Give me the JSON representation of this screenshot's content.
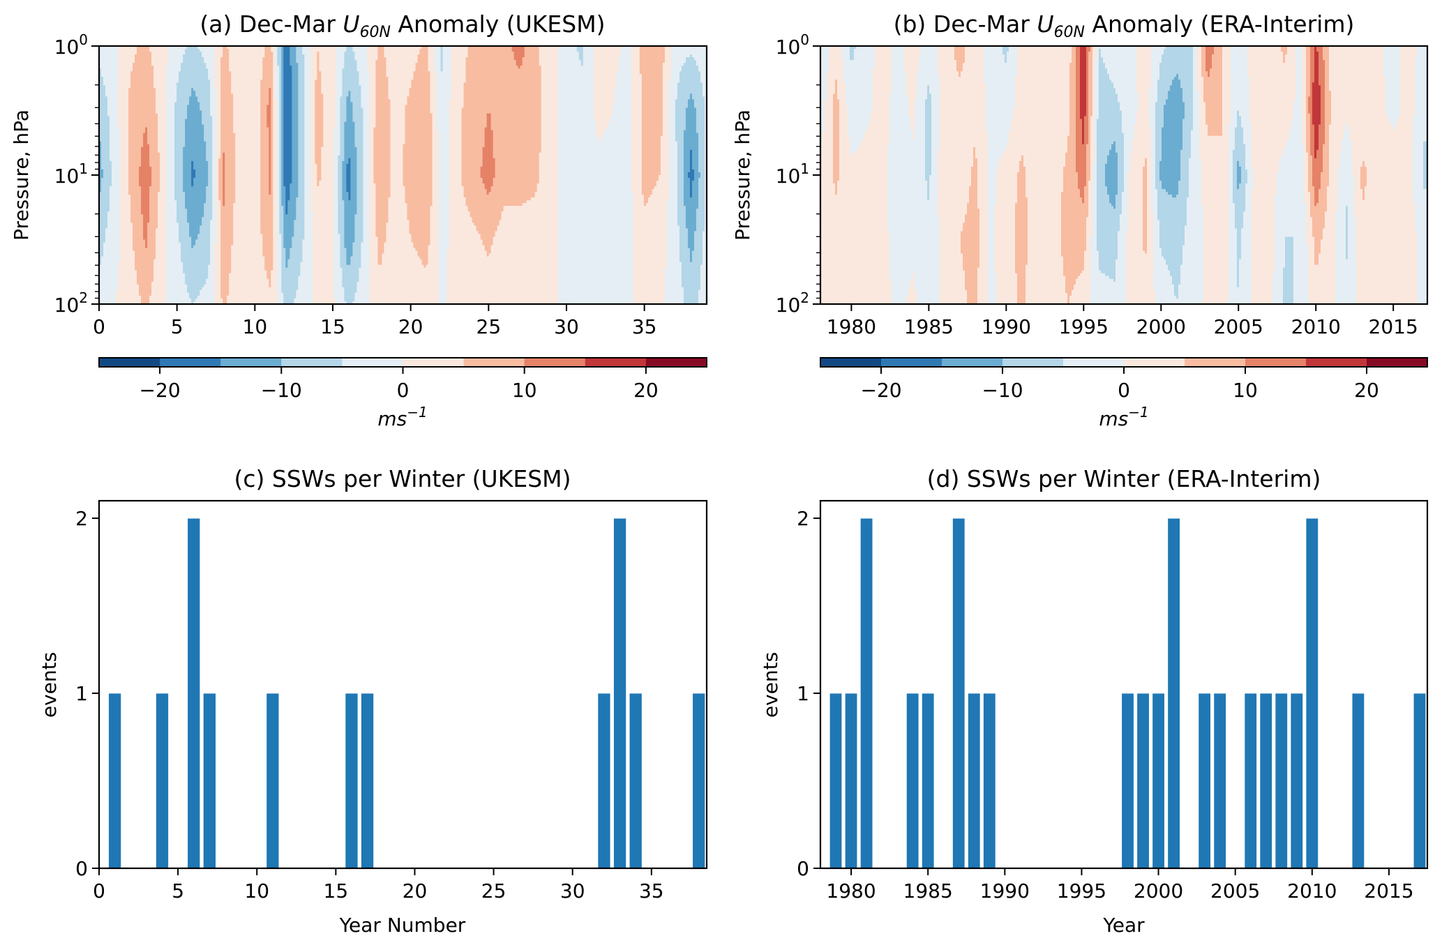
{
  "figure": {
    "panels": [
      "a",
      "b",
      "c",
      "d"
    ]
  },
  "colorbar": {
    "levels": [
      -25,
      -20,
      -15,
      -10,
      -5,
      0,
      5,
      10,
      15,
      20,
      25
    ],
    "colors": [
      "#124984",
      "#2f79b5",
      "#6bacd1",
      "#b3d6e8",
      "#e5eef4",
      "#fae8de",
      "#f8bca1",
      "#e58267",
      "#c13639",
      "#870a24"
    ],
    "ticks": [
      -20,
      -10,
      0,
      10,
      20
    ],
    "tick_labels": [
      "−20",
      "−10",
      "0",
      "10",
      "20"
    ],
    "label_main": "ms",
    "label_sup": "−1"
  },
  "chart_data": [
    {
      "id": "a",
      "type": "heatmap",
      "title_prefix": "(a) Dec-Mar ",
      "title_var": "U",
      "title_sub": "60N",
      "title_suffix": " Anomaly (UKESM)",
      "xlabel": "",
      "ylabel": "Pressure, hPa",
      "xlim": [
        0,
        39
      ],
      "ylim": [
        100,
        1
      ],
      "yscale": "log",
      "xticks": [
        0,
        5,
        10,
        15,
        20,
        25,
        30,
        35
      ],
      "xtick_labels": [
        "0",
        "5",
        "10",
        "15",
        "20",
        "25",
        "30",
        "35"
      ],
      "yticks": [
        1,
        10,
        100
      ],
      "ytick_labels": [
        {
          "base": "10",
          "exp": "0"
        },
        {
          "base": "10",
          "exp": "1"
        },
        {
          "base": "10",
          "exp": "2"
        }
      ],
      "units": "m s^-1",
      "pressure_levels": [
        1,
        3,
        10,
        30,
        100
      ],
      "x": [
        0,
        1,
        2,
        3,
        4,
        5,
        6,
        7,
        8,
        9,
        10,
        11,
        12,
        13,
        14,
        15,
        16,
        17,
        18,
        19,
        20,
        21,
        22,
        23,
        24,
        25,
        26,
        27,
        28,
        29,
        30,
        31,
        32,
        33,
        34,
        35,
        36,
        37,
        38,
        39
      ],
      "values": [
        [
          -3,
          -9,
          -12,
          -7,
          -3
        ],
        [
          -1,
          -2,
          -3,
          -2,
          0
        ],
        [
          4,
          6,
          6,
          4,
          2
        ],
        [
          6,
          9,
          13,
          11,
          6
        ],
        [
          2,
          3,
          4,
          2,
          1
        ],
        [
          -3,
          -6,
          -7,
          -4,
          -2
        ],
        [
          -6,
          -12,
          -16,
          -11,
          -5
        ],
        [
          -3,
          -8,
          -10,
          -8,
          -3
        ],
        [
          6,
          8,
          11,
          9,
          6
        ],
        [
          2,
          3,
          3,
          2,
          1
        ],
        [
          1,
          2,
          2,
          2,
          1
        ],
        [
          7,
          12,
          11,
          9,
          4
        ],
        [
          -18,
          -20,
          -19,
          -13,
          -7
        ],
        [
          -6,
          -8,
          -8,
          -6,
          -3
        ],
        [
          5,
          7,
          6,
          2,
          1
        ],
        [
          1,
          2,
          2,
          1,
          1
        ],
        [
          -6,
          -12,
          -17,
          -14,
          -6
        ],
        [
          -2,
          -4,
          -5,
          -4,
          -2
        ],
        [
          6,
          9,
          10,
          7,
          3
        ],
        [
          2,
          3,
          3,
          2,
          1
        ],
        [
          3,
          6,
          7,
          5,
          2
        ],
        [
          6,
          9,
          10,
          7,
          3
        ],
        [
          -6,
          -4,
          -3,
          -2,
          -1
        ],
        [
          3,
          4,
          4,
          3,
          2
        ],
        [
          6,
          7,
          8,
          4,
          2
        ],
        [
          6,
          10,
          12,
          6,
          3
        ],
        [
          8,
          8,
          7,
          3,
          2
        ],
        [
          12,
          7,
          7,
          3,
          1
        ],
        [
          6,
          7,
          6,
          3,
          1
        ],
        [
          2,
          2,
          2,
          1,
          1
        ],
        [
          -3,
          -2,
          -2,
          -1,
          -1
        ],
        [
          -6,
          -3,
          -2,
          -1,
          -2
        ],
        [
          2,
          1,
          -1,
          -2,
          -3
        ],
        [
          1,
          0,
          -1,
          -2,
          -2
        ],
        [
          -1,
          -2,
          -2,
          -1,
          -1
        ],
        [
          7,
          7,
          7,
          3,
          2
        ],
        [
          8,
          7,
          5,
          2,
          1
        ],
        [
          -3,
          -5,
          -4,
          -3,
          -2
        ],
        [
          -4,
          -12,
          -17,
          -12,
          -7
        ],
        [
          -2,
          -4,
          -4,
          -3,
          -2
        ]
      ]
    },
    {
      "id": "b",
      "type": "heatmap",
      "title_prefix": "(b) Dec-Mar ",
      "title_var": "U",
      "title_sub": "60N",
      "title_suffix": " Anomaly (ERA-Interim)",
      "xlabel": "",
      "ylabel": "Pressure, hPa",
      "xlim": [
        1978,
        2017.2
      ],
      "ylim": [
        100,
        1
      ],
      "yscale": "log",
      "xticks": [
        1980,
        1985,
        1990,
        1995,
        2000,
        2005,
        2010,
        2015
      ],
      "xtick_labels": [
        "1980",
        "1985",
        "1990",
        "1995",
        "2000",
        "2005",
        "2010",
        "2015"
      ],
      "yticks": [
        1,
        10,
        100
      ],
      "ytick_labels": [
        {
          "base": "10",
          "exp": "0"
        },
        {
          "base": "10",
          "exp": "1"
        },
        {
          "base": "10",
          "exp": "2"
        }
      ],
      "units": "m s^-1",
      "pressure_levels": [
        1,
        3,
        10,
        30,
        100
      ],
      "x": [
        1978,
        1979,
        1980,
        1981,
        1982,
        1983,
        1984,
        1985,
        1986,
        1987,
        1988,
        1989,
        1990,
        1991,
        1992,
        1993,
        1994,
        1995,
        1996,
        1997,
        1998,
        1999,
        2000,
        2001,
        2002,
        2003,
        2004,
        2005,
        2006,
        2007,
        2008,
        2009,
        2010,
        2011,
        2012,
        2013,
        2014,
        2015,
        2016,
        2017
      ],
      "values": [
        [
          -5,
          -3,
          1,
          2,
          1
        ],
        [
          3,
          7,
          6,
          3,
          2
        ],
        [
          -6,
          -3,
          1,
          2,
          2
        ],
        [
          -2,
          -1,
          2,
          2,
          1
        ],
        [
          2,
          2,
          2,
          2,
          2
        ],
        [
          -1,
          -2,
          -4,
          -3,
          -1
        ],
        [
          2,
          1,
          -1,
          -1,
          1
        ],
        [
          -2,
          -7,
          -6,
          -4,
          -3
        ],
        [
          2,
          3,
          4,
          2,
          1
        ],
        [
          7,
          3,
          2,
          5,
          4
        ],
        [
          2,
          4,
          6,
          7,
          6
        ],
        [
          -2,
          -2,
          -1,
          -1,
          -1
        ],
        [
          -6,
          -3,
          2,
          3,
          2
        ],
        [
          2,
          3,
          6,
          7,
          6
        ],
        [
          1,
          2,
          2,
          2,
          1
        ],
        [
          2,
          2,
          3,
          3,
          2
        ],
        [
          2,
          4,
          6,
          7,
          5
        ],
        [
          19,
          18,
          13,
          7,
          3
        ],
        [
          -5,
          -7,
          -8,
          -7,
          -3
        ],
        [
          -3,
          -6,
          -14,
          -7,
          -4
        ],
        [
          -2,
          -3,
          1,
          2,
          1
        ],
        [
          3,
          3,
          6,
          6,
          3
        ],
        [
          -4,
          -9,
          -11,
          -6,
          -2
        ],
        [
          -7,
          -14,
          -12,
          -7,
          -5
        ],
        [
          -6,
          -6,
          -3,
          -3,
          -2
        ],
        [
          14,
          7,
          2,
          1,
          1
        ],
        [
          4,
          5,
          5,
          4,
          2
        ],
        [
          -4,
          -5,
          -12,
          -6,
          -5
        ],
        [
          3,
          2,
          1,
          1,
          1
        ],
        [
          2,
          2,
          2,
          2,
          2
        ],
        [
          6,
          3,
          -2,
          -5,
          -6
        ],
        [
          -2,
          -2,
          -4,
          -5,
          -4
        ],
        [
          16,
          20,
          14,
          7,
          3
        ],
        [
          3,
          4,
          3,
          2,
          1
        ],
        [
          5,
          1,
          -4,
          -6,
          -3
        ],
        [
          2,
          2,
          6,
          4,
          2
        ],
        [
          1,
          2,
          3,
          2,
          2
        ],
        [
          -2,
          -2,
          4,
          3,
          2
        ],
        [
          2,
          2,
          2,
          2,
          1
        ],
        [
          -2,
          -4,
          -6,
          -2,
          -1
        ]
      ]
    },
    {
      "id": "c",
      "type": "bar",
      "title": "(c) SSWs per Winter (UKESM)",
      "xlabel": "Year Number",
      "ylabel": "events",
      "xlim": [
        0,
        38.5
      ],
      "ylim": [
        0,
        2.1
      ],
      "xticks": [
        0,
        5,
        10,
        15,
        20,
        25,
        30,
        35
      ],
      "xtick_labels": [
        "0",
        "5",
        "10",
        "15",
        "20",
        "25",
        "30",
        "35"
      ],
      "yticks": [
        0,
        1,
        2
      ],
      "ytick_labels": [
        "0",
        "1",
        "2"
      ],
      "bar_width": 0.8,
      "color": "#1f77b4",
      "x": [
        1,
        4,
        6,
        7,
        11,
        16,
        17,
        32,
        33,
        34,
        38
      ],
      "values": [
        1,
        1,
        2,
        1,
        1,
        1,
        1,
        1,
        2,
        1,
        1
      ]
    },
    {
      "id": "d",
      "type": "bar",
      "title": "(d) SSWs per Winter (ERA-Interim)",
      "xlabel": "Year",
      "ylabel": "events",
      "xlim": [
        1978,
        2017.5
      ],
      "ylim": [
        0,
        2.1
      ],
      "xticks": [
        1980,
        1985,
        1990,
        1995,
        2000,
        2005,
        2010,
        2015
      ],
      "xtick_labels": [
        "1980",
        "1985",
        "1990",
        "1995",
        "2000",
        "2005",
        "2010",
        "2015"
      ],
      "yticks": [
        0,
        1,
        2
      ],
      "ytick_labels": [
        "0",
        "1",
        "2"
      ],
      "bar_width": 0.8,
      "color": "#1f77b4",
      "x": [
        1979,
        1980,
        1981,
        1984,
        1985,
        1987,
        1988,
        1989,
        1998,
        1999,
        2000,
        2001,
        2003,
        2004,
        2006,
        2007,
        2008,
        2009,
        2010,
        2013,
        2017
      ],
      "values": [
        1,
        1,
        2,
        1,
        1,
        2,
        1,
        1,
        1,
        1,
        1,
        2,
        1,
        1,
        1,
        1,
        1,
        1,
        2,
        1,
        1
      ]
    }
  ]
}
